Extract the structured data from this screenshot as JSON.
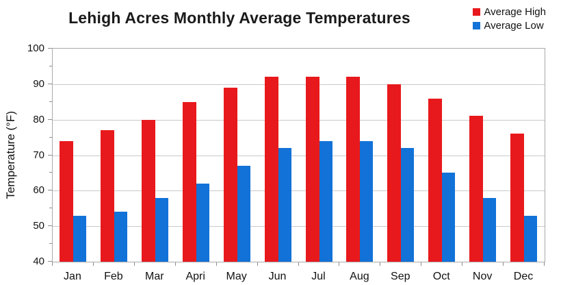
{
  "title": "Lehigh Acres Monthly Average Temperatures",
  "legend": [
    {
      "label": "Average High",
      "color": "#e8191c"
    },
    {
      "label": "Average Low",
      "color": "#1272d8"
    }
  ],
  "chart_data": {
    "type": "bar",
    "title": "Lehigh Acres Monthly Average Temperatures",
    "xlabel": "",
    "ylabel": "Temperature (°F)",
    "categories": [
      "Jan",
      "Feb",
      "Mar",
      "Apri",
      "May",
      "Jun",
      "Jul",
      "Aug",
      "Sep",
      "Oct",
      "Nov",
      "Dec"
    ],
    "series": [
      {
        "name": "Average High",
        "color": "#e8191c",
        "values": [
          74,
          77,
          80,
          85,
          89,
          92,
          92,
          92,
          90,
          86,
          81,
          76
        ]
      },
      {
        "name": "Average Low",
        "color": "#1272d8",
        "values": [
          53,
          54,
          58,
          62,
          67,
          72,
          74,
          74,
          72,
          65,
          58,
          53
        ]
      }
    ],
    "ylim": [
      40,
      100
    ],
    "ytick_step": 10,
    "y_minor_tick_step": 5,
    "grid": true,
    "legend_position": "top-right",
    "background": "#ffffff",
    "gridline_color": "#c9c9c9",
    "axis_color": "#a9a9a9"
  }
}
